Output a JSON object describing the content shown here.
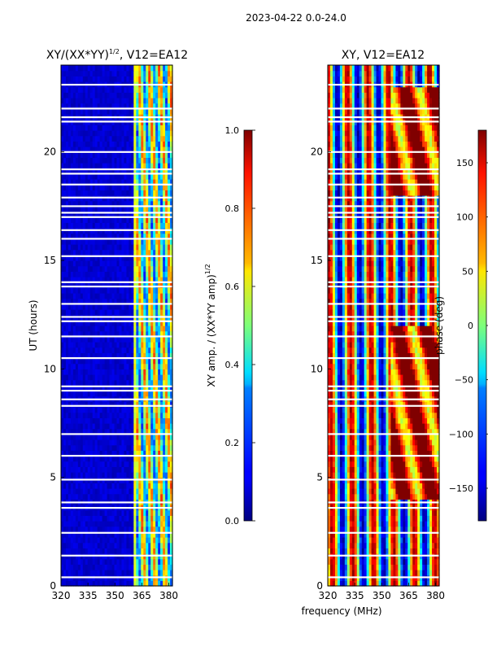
{
  "figure": {
    "title": "2023-04-22 0.0-24.0"
  },
  "chart_data": [
    {
      "type": "heatmap",
      "title_main": "XY/(XX*YY)",
      "title_sup": "1/2",
      "title_tail": ", V12=EA12",
      "xlabel": "",
      "ylabel": "UT (hours)",
      "xlim": [
        320,
        382
      ],
      "ylim": [
        0,
        24
      ],
      "xticks": [
        320,
        335,
        350,
        365,
        380
      ],
      "yticks": [
        0,
        5,
        10,
        15,
        20
      ],
      "bright_band_mhz": [
        360,
        382
      ],
      "colorbar": {
        "label_main": "XY amp. / (XX*YY amp)",
        "label_sup": "1/2",
        "range": [
          0.0,
          1.0
        ],
        "ticks": [
          "0.0",
          "0.2",
          "0.4",
          "0.6",
          "0.8",
          "1.0"
        ],
        "colormap": "jet"
      }
    },
    {
      "type": "heatmap",
      "title": "XY, V12=EA12",
      "xlabel": "frequency (MHz)",
      "ylabel": "",
      "xlim": [
        320,
        382
      ],
      "ylim": [
        0,
        24
      ],
      "xticks": [
        320,
        335,
        350,
        365,
        380
      ],
      "yticks": [
        0,
        5,
        10,
        15,
        20
      ],
      "colorbar": {
        "label": "phase (deg)",
        "range": [
          -180,
          180
        ],
        "ticks": [
          "−150",
          "−100",
          "−50",
          "0",
          "50",
          "100",
          "150"
        ],
        "tick_values": [
          -150,
          -100,
          -50,
          0,
          50,
          100,
          150
        ],
        "colormap": "jet"
      }
    }
  ],
  "flagged_hours": [
    0.4,
    1.4,
    2.45,
    3.6,
    3.85,
    4.9,
    6.0,
    7.0,
    8.3,
    8.6,
    9.0,
    9.2,
    10.5,
    11.5,
    12.2,
    12.4,
    13.0,
    13.8,
    14.0,
    15.2,
    16.0,
    16.4,
    17.0,
    17.2,
    17.5,
    17.9,
    18.5,
    19.0,
    19.2,
    20.0,
    21.4,
    21.6,
    22.0,
    23.1
  ],
  "colors": {
    "jet_low": "#00007f",
    "jet_high": "#7f0000",
    "axis": "#000000",
    "flag": "#ffffff"
  }
}
